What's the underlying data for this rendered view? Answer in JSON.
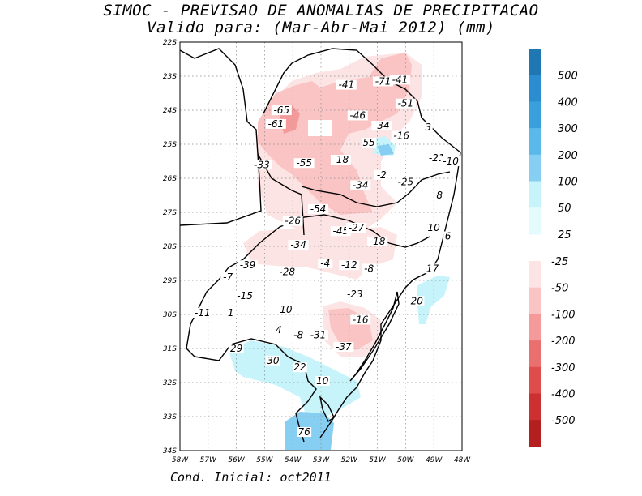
{
  "title_line1": "SIMOC - PREVISAO DE ANOMALIAS DE PRECIPITACAO",
  "title_line2": "Valido para: (Mar-Abr-Mai 2012) (mm)",
  "footer": "Cond. Inicial: oct2011",
  "lat_labels": [
    "22S",
    "23S",
    "24S",
    "25S",
    "26S",
    "27S",
    "28S",
    "29S",
    "30S",
    "31S",
    "32S",
    "33S",
    "34S"
  ],
  "lon_labels": [
    "58W",
    "57W",
    "56W",
    "55W",
    "54W",
    "53W",
    "52W",
    "51W",
    "50W",
    "49W",
    "48W"
  ],
  "legend_positive": {
    "labels": [
      "500",
      "400",
      "300",
      "200",
      "100",
      "50",
      "25"
    ],
    "colors": [
      "#1f78b4",
      "#2b8cd0",
      "#3aa0dc",
      "#5ab8ea",
      "#86cff2",
      "#c6f4fa",
      "#e4fbfd"
    ]
  },
  "legend_negative": {
    "labels": [
      "-25",
      "-50",
      "-100",
      "-200",
      "-300",
      "-400",
      "-500"
    ],
    "colors": [
      "#fde4e4",
      "#fbc4c4",
      "#f49a9a",
      "#ea7070",
      "#de4c4c",
      "#cc3030",
      "#b41f1f"
    ]
  },
  "map_values": [
    {
      "v": "-41",
      "lon": -52.1,
      "lat": -23.3
    },
    {
      "v": "-71",
      "lon": -50.8,
      "lat": -23.2
    },
    {
      "v": "-41",
      "lon": -50.2,
      "lat": -23.15
    },
    {
      "v": "-51",
      "lon": -50.0,
      "lat": -23.85
    },
    {
      "v": "-65",
      "lon": -54.4,
      "lat": -24.05
    },
    {
      "v": "-46",
      "lon": -51.7,
      "lat": -24.2
    },
    {
      "v": "-61",
      "lon": -54.6,
      "lat": -24.45
    },
    {
      "v": "-34",
      "lon": -50.85,
      "lat": -24.5
    },
    {
      "v": "3",
      "lon": -49.2,
      "lat": -24.55
    },
    {
      "v": "-16",
      "lon": -50.15,
      "lat": -24.8
    },
    {
      "v": "55",
      "lon": -51.3,
      "lat": -25.0
    },
    {
      "v": "-18",
      "lon": -52.3,
      "lat": -25.5
    },
    {
      "v": "-21",
      "lon": -48.9,
      "lat": -25.45
    },
    {
      "v": "-10",
      "lon": -48.4,
      "lat": -25.55
    },
    {
      "v": "-33",
      "lon": -55.1,
      "lat": -25.65
    },
    {
      "v": "-55",
      "lon": -53.6,
      "lat": -25.6
    },
    {
      "v": "-2",
      "lon": -50.85,
      "lat": -25.95
    },
    {
      "v": "-25",
      "lon": -50.0,
      "lat": -26.15
    },
    {
      "v": "-34",
      "lon": -51.6,
      "lat": -26.25
    },
    {
      "v": "8",
      "lon": -48.8,
      "lat": -26.55
    },
    {
      "v": "-54",
      "lon": -53.1,
      "lat": -26.95
    },
    {
      "v": "-26",
      "lon": -54.0,
      "lat": -27.3
    },
    {
      "v": "-45",
      "lon": -52.3,
      "lat": -27.6
    },
    {
      "v": "-27",
      "lon": -51.75,
      "lat": -27.5
    },
    {
      "v": "10",
      "lon": -49.0,
      "lat": -27.5
    },
    {
      "v": "6",
      "lon": -48.5,
      "lat": -27.75
    },
    {
      "v": "-18",
      "lon": -51.0,
      "lat": -27.9
    },
    {
      "v": "-34",
      "lon": -53.8,
      "lat": -28.0
    },
    {
      "v": "-4",
      "lon": -52.85,
      "lat": -28.55
    },
    {
      "v": "-12",
      "lon": -52.0,
      "lat": -28.6
    },
    {
      "v": "-8",
      "lon": -51.3,
      "lat": -28.7
    },
    {
      "v": "17",
      "lon": -49.05,
      "lat": -28.7
    },
    {
      "v": "-39",
      "lon": -55.6,
      "lat": -28.6
    },
    {
      "v": "-28",
      "lon": -54.2,
      "lat": -28.8
    },
    {
      "v": "-7",
      "lon": -56.3,
      "lat": -28.95
    },
    {
      "v": "-15",
      "lon": -55.7,
      "lat": -29.5
    },
    {
      "v": "-23",
      "lon": -51.8,
      "lat": -29.45
    },
    {
      "v": "20",
      "lon": -49.6,
      "lat": -29.65
    },
    {
      "v": "-10",
      "lon": -54.3,
      "lat": -29.9
    },
    {
      "v": "1",
      "lon": -56.2,
      "lat": -30.0
    },
    {
      "v": "-11",
      "lon": -57.2,
      "lat": -30.0
    },
    {
      "v": "-16",
      "lon": -51.6,
      "lat": -30.2
    },
    {
      "v": "4",
      "lon": -54.5,
      "lat": -30.5
    },
    {
      "v": "-8",
      "lon": -53.8,
      "lat": -30.65
    },
    {
      "v": "-31",
      "lon": -53.1,
      "lat": -30.65
    },
    {
      "v": "-37",
      "lon": -52.2,
      "lat": -31.0
    },
    {
      "v": "29",
      "lon": -56.0,
      "lat": -31.05
    },
    {
      "v": "30",
      "lon": -54.7,
      "lat": -31.4
    },
    {
      "v": "22",
      "lon": -53.75,
      "lat": -31.6
    },
    {
      "v": "10",
      "lon": -52.95,
      "lat": -32.0
    },
    {
      "v": "76",
      "lon": -53.6,
      "lat": -33.5
    }
  ]
}
